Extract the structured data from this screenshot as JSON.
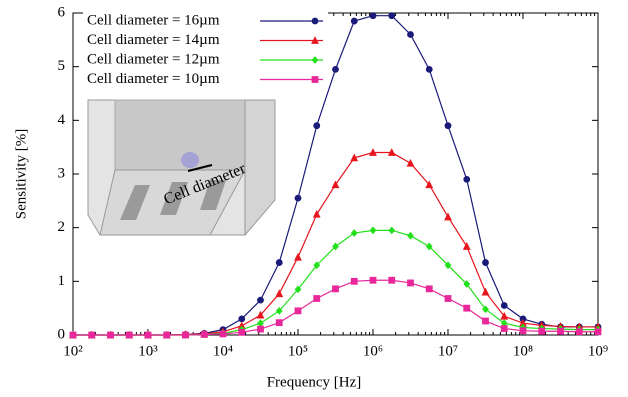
{
  "chart_data": {
    "type": "line",
    "xlabel": "Frequency [Hz]",
    "ylabel": "Sensitivity [%]",
    "annotation": "Cell diameter",
    "xscale": "log",
    "grid": false,
    "legend": "upper left",
    "xlim": [
      100,
      1000000000
    ],
    "ylim": [
      0,
      6
    ],
    "xticks": [
      {
        "value": 100,
        "label": "10²"
      },
      {
        "value": 1000,
        "label": "10³"
      },
      {
        "value": 10000,
        "label": "10⁴"
      },
      {
        "value": 100000,
        "label": "10⁵"
      },
      {
        "value": 1000000,
        "label": "10⁶"
      },
      {
        "value": 10000000,
        "label": "10⁷"
      },
      {
        "value": 100000000,
        "label": "10⁸"
      },
      {
        "value": 1000000000,
        "label": "10⁹"
      }
    ],
    "yticks": [
      0,
      1,
      2,
      3,
      4,
      5,
      6
    ],
    "x": [
      100,
      177.8,
      316.2,
      562.3,
      1000,
      1778,
      3162,
      5623,
      10000,
      17780,
      31620,
      56230,
      100000,
      177800,
      316200,
      562300,
      1000000,
      1778000,
      3162000,
      5623000,
      10000000,
      17780000,
      31620000,
      56230000,
      100000000,
      177800000,
      316200000,
      562300000,
      1000000000
    ],
    "series": [
      {
        "name": "Cell diameter = 16µm",
        "color": "#1a1a7a",
        "marker": "circle",
        "values": [
          0,
          0,
          0,
          0,
          0,
          0,
          0.01,
          0.03,
          0.1,
          0.3,
          0.65,
          1.35,
          2.55,
          3.9,
          4.95,
          5.85,
          5.95,
          5.95,
          5.6,
          4.95,
          3.9,
          2.9,
          1.35,
          0.55,
          0.3,
          0.2,
          0.15,
          0.15,
          0.15
        ]
      },
      {
        "name": "Cell diameter = 14µm",
        "color": "#e8141e",
        "marker": "triangle",
        "values": [
          0,
          0,
          0,
          0,
          0,
          0,
          0.01,
          0.02,
          0.06,
          0.17,
          0.37,
          0.77,
          1.45,
          2.25,
          2.8,
          3.3,
          3.4,
          3.4,
          3.2,
          2.8,
          2.2,
          1.65,
          0.8,
          0.35,
          0.22,
          0.18,
          0.16,
          0.15,
          0.15
        ]
      },
      {
        "name": "Cell diameter = 12µm",
        "color": "#22e01a",
        "marker": "diamond",
        "values": [
          0,
          0,
          0,
          0,
          0,
          0,
          0,
          0.01,
          0.03,
          0.1,
          0.22,
          0.45,
          0.85,
          1.3,
          1.65,
          1.9,
          1.95,
          1.95,
          1.85,
          1.65,
          1.3,
          0.95,
          0.48,
          0.22,
          0.14,
          0.12,
          0.11,
          0.1,
          0.1
        ]
      },
      {
        "name": "Cell diameter = 10µm",
        "color": "#e8289a",
        "marker": "square",
        "values": [
          0,
          0,
          0,
          0,
          0,
          0,
          0,
          0.01,
          0.02,
          0.05,
          0.11,
          0.23,
          0.45,
          0.68,
          0.86,
          1.0,
          1.02,
          1.02,
          0.97,
          0.86,
          0.68,
          0.5,
          0.26,
          0.12,
          0.08,
          0.07,
          0.07,
          0.06,
          0.06
        ]
      }
    ]
  }
}
